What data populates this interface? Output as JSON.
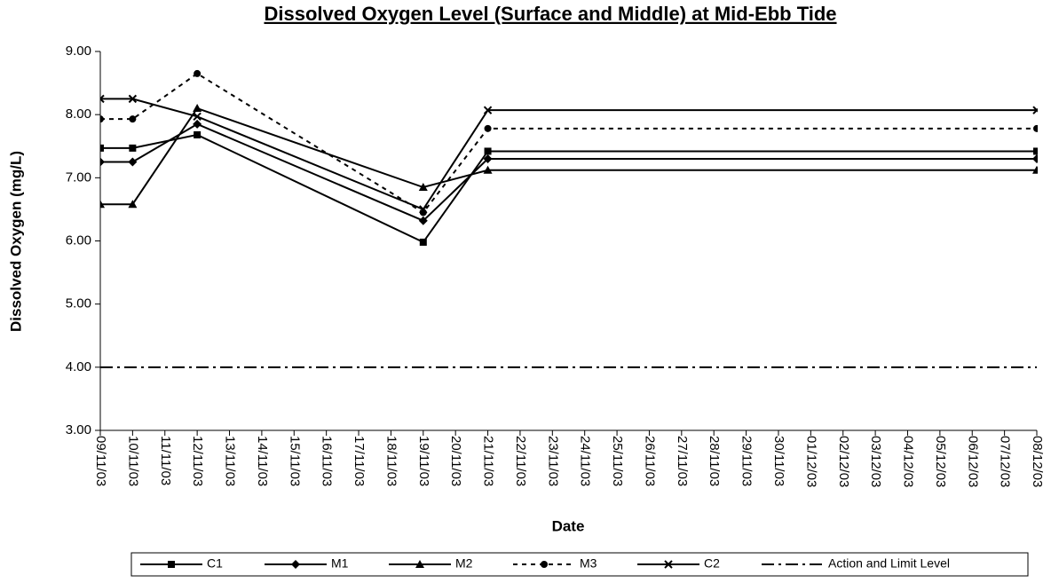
{
  "chart_data": {
    "type": "line",
    "title": "Dissolved Oxygen Level (Surface and Middle) at Mid-Ebb Tide",
    "x_label": "Date",
    "y_label": "Dissolved Oxygen (mg/L)",
    "categories": [
      "09/11/03",
      "10/11/03",
      "11/11/03",
      "12/11/03",
      "13/11/03",
      "14/11/03",
      "15/11/03",
      "16/11/03",
      "17/11/03",
      "18/11/03",
      "19/11/03",
      "20/11/03",
      "21/11/03",
      "22/11/03",
      "23/11/03",
      "24/11/03",
      "25/11/03",
      "26/11/03",
      "27/11/03",
      "28/11/03",
      "29/11/03",
      "30/11/03",
      "01/12/03",
      "02/12/03",
      "03/12/03",
      "04/12/03",
      "05/12/03",
      "06/12/03",
      "07/12/03",
      "08/12/03"
    ],
    "ylim": [
      3,
      9
    ],
    "yticks": [
      {
        "value": 3,
        "label": "3.00"
      },
      {
        "value": 4,
        "label": "4.00"
      },
      {
        "value": 5,
        "label": "5.00"
      },
      {
        "value": 6,
        "label": "6.00"
      },
      {
        "value": 7,
        "label": "7.00"
      },
      {
        "value": 8,
        "label": "8.00"
      },
      {
        "value": 9,
        "label": "9.00"
      }
    ],
    "series": [
      {
        "name": "C1",
        "color": "#000000",
        "marker": "square",
        "dash": "solid",
        "x": [
          "09/11/03",
          "10/11/03",
          "12/11/03",
          "19/11/03",
          "21/11/03",
          "08/12/03"
        ],
        "values": [
          7.47,
          7.47,
          7.68,
          5.98,
          7.42,
          7.42
        ]
      },
      {
        "name": "M1",
        "color": "#000000",
        "marker": "diamond",
        "dash": "solid",
        "x": [
          "09/11/03",
          "10/11/03",
          "12/11/03",
          "19/11/03",
          "21/11/03",
          "08/12/03"
        ],
        "values": [
          7.25,
          7.25,
          7.85,
          6.32,
          7.3,
          7.3
        ]
      },
      {
        "name": "M2",
        "color": "#000000",
        "marker": "triangle",
        "dash": "solid",
        "x": [
          "09/11/03",
          "10/11/03",
          "12/11/03",
          "19/11/03",
          "21/11/03",
          "08/12/03"
        ],
        "values": [
          6.58,
          6.58,
          8.1,
          6.85,
          7.12,
          7.12
        ]
      },
      {
        "name": "M3",
        "color": "#000000",
        "marker": "circle",
        "dash": "dashed",
        "x": [
          "09/11/03",
          "10/11/03",
          "12/11/03",
          "19/11/03",
          "21/11/03",
          "08/12/03"
        ],
        "values": [
          7.93,
          7.93,
          8.65,
          6.45,
          7.78,
          7.78
        ]
      },
      {
        "name": "C2",
        "color": "#000000",
        "marker": "x",
        "dash": "solid",
        "x": [
          "09/11/03",
          "10/11/03",
          "12/11/03",
          "19/11/03",
          "21/11/03",
          "08/12/03"
        ],
        "values": [
          8.25,
          8.25,
          7.97,
          6.5,
          8.07,
          8.07
        ]
      },
      {
        "name": "Action and Limit Level",
        "color": "#000000",
        "marker": "none",
        "dash": "dashdot",
        "x": [
          "09/11/03",
          "08/12/03"
        ],
        "values": [
          4,
          4
        ]
      }
    ]
  }
}
